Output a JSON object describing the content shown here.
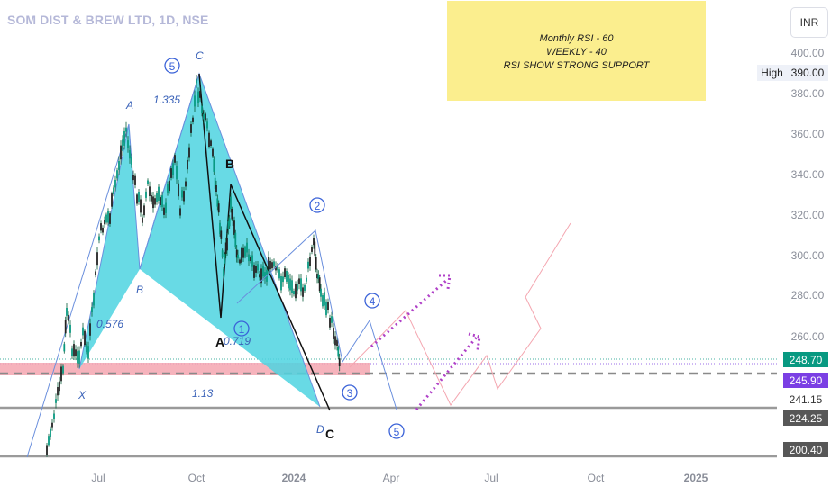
{
  "header": {
    "title": "SOM DIST & BREW LTD, 1D, NSE",
    "currency": "INR",
    "high_label": "High",
    "high_value": "390.00"
  },
  "note": {
    "lines": [
      "Monthly RSI - 60",
      "WEEKLY - 40",
      "RSI SHOW STRONG SUPPORT"
    ]
  },
  "chart_data": {
    "type": "candlestick",
    "x_tick_labels": [
      "Jul",
      "Oct",
      "2024",
      "Apr",
      "Jul",
      "Oct",
      "2025"
    ],
    "y_tick_labels": [
      "400.00",
      "380.00",
      "360.00",
      "340.00",
      "320.00",
      "300.00",
      "280.00",
      "260.00"
    ],
    "price_labels": [
      {
        "value": "248.70",
        "bg": "#089981",
        "fg": "#ffffff"
      },
      {
        "value": "245.90",
        "bg": "#7b3fe4",
        "fg": "#ffffff"
      },
      {
        "value": "241.15",
        "bg": "#ffffff",
        "fg": "#333333"
      },
      {
        "value": "224.25",
        "bg": "#575757",
        "fg": "#ffffff"
      },
      {
        "value": "200.40",
        "bg": "#575757",
        "fg": "#ffffff"
      }
    ],
    "pattern_labels": [
      "X",
      "A",
      "B",
      "C",
      "D",
      "0.576",
      "1.335",
      "0.719",
      "1.13"
    ],
    "abc_labels": [
      "A",
      "B",
      "C"
    ],
    "wave_labels": [
      "1",
      "2",
      "3",
      "4",
      "5",
      "5"
    ],
    "horizontal_levels": [
      248.7,
      245.9,
      241.15,
      224.25,
      200.4
    ],
    "colors": {
      "candle_up": "#089981",
      "harmonic_fill": "#4dd4e0",
      "support_zone": "#f4a6b0",
      "wave_line": "#6a8fdd",
      "projection_line": "#f4a6b0",
      "arrow_dots": "#b040c8"
    }
  }
}
